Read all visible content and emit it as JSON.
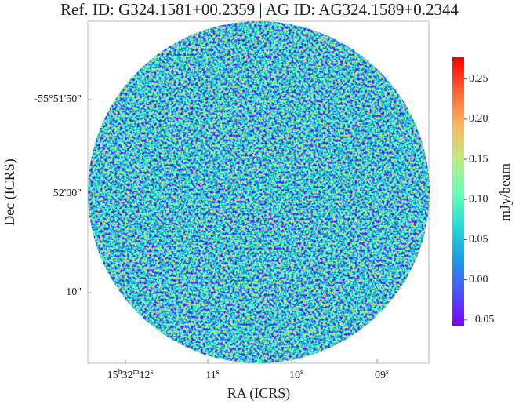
{
  "chart_data": {
    "type": "image",
    "title": "Ref. ID: G324.1581+00.2359 | AG ID: AG324.1589+0.2344",
    "xlabel": "RA (ICRS)",
    "ylabel": "Dec (ICRS)",
    "xticks": [
      [
        {
          "text": "15",
          "sup": "h"
        },
        {
          "text": "32",
          "sup": "m"
        },
        {
          "text": "12",
          "sup": "s"
        }
      ],
      [
        {
          "text": "11",
          "sup": "s"
        }
      ],
      [
        {
          "text": "10",
          "sup": "s"
        }
      ],
      [
        {
          "text": "09",
          "sup": "s"
        }
      ]
    ],
    "yticks": [
      "-55°51'50\"",
      "52'00\"",
      "10\""
    ],
    "colorbar": {
      "label": "mJy/beam",
      "lim": [
        -0.057,
        0.277
      ],
      "ticks": [
        {
          "value": -0.05,
          "label": "−0.05"
        },
        {
          "value": 0,
          "label": "0.00"
        },
        {
          "value": 0.05,
          "label": "0.05"
        },
        {
          "value": 0.1,
          "label": "0.10"
        },
        {
          "value": 0.15,
          "label": "0.15"
        },
        {
          "value": 0.2,
          "label": "0.20"
        },
        {
          "value": 0.25,
          "label": "0.25"
        }
      ],
      "colormap": [
        "#7f00ff",
        "#4a55f5",
        "#1c9ee6",
        "#2adcd4",
        "#6affb2",
        "#bceb80",
        "#ffb361",
        "#ff6332",
        "#ff0000"
      ]
    }
  }
}
